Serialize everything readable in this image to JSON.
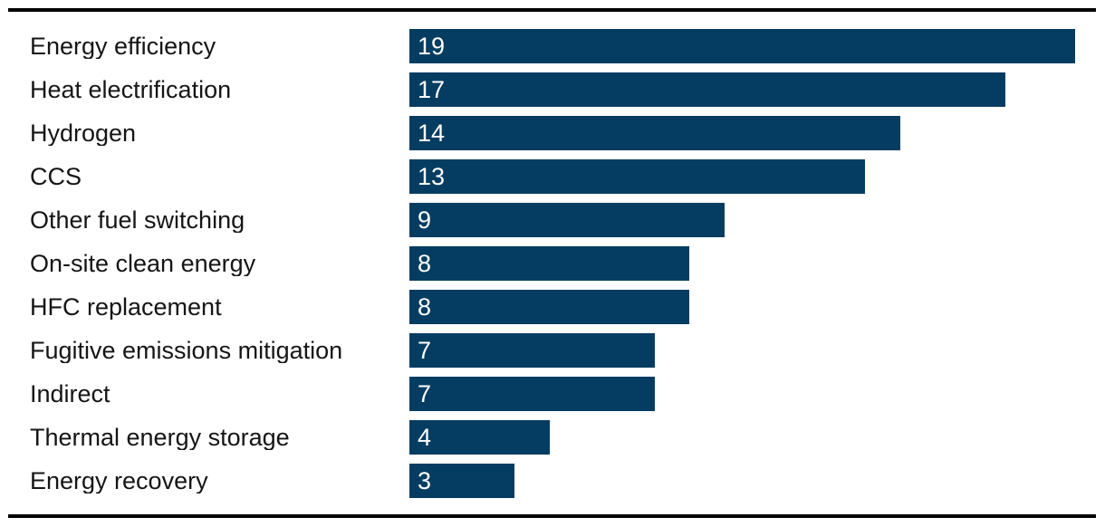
{
  "chart_data": {
    "type": "bar",
    "orientation": "horizontal",
    "title": "",
    "xlabel": "",
    "ylabel": "",
    "categories": [
      "Energy efficiency",
      "Heat electrification",
      "Hydrogen",
      "CCS",
      "Other fuel switching",
      "On-site clean energy",
      "HFC replacement",
      "Fugitive emissions mitigation",
      "Indirect",
      "Thermal energy storage",
      "Energy recovery"
    ],
    "values": [
      19,
      17,
      14,
      13,
      9,
      8,
      8,
      7,
      7,
      4,
      3
    ],
    "xlim": [
      0,
      19
    ],
    "grid": false,
    "legend": false,
    "data_labels": "inside-left",
    "axis_ticks_visible": false
  },
  "colors": {
    "bar": "#053d62",
    "value_text": "#ffffff",
    "category_text": "#151515",
    "rule": "#000000",
    "background": "#ffffff"
  }
}
